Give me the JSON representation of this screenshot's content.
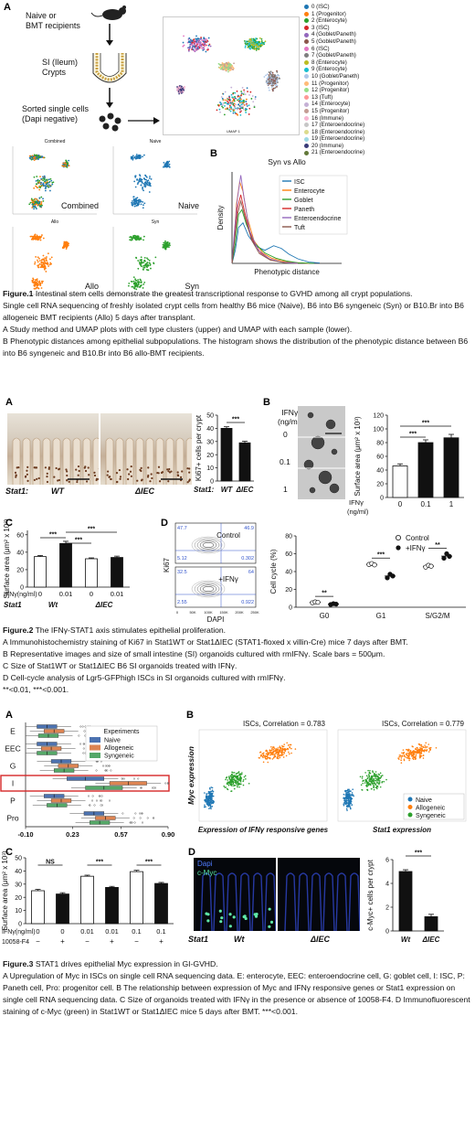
{
  "fig1": {
    "panel_a": "A",
    "panel_b": "B",
    "flow": {
      "step1": "Naive or",
      "step1b": "BMT recipients",
      "step2": "SI (Ileum)",
      "step2b": "Crypts",
      "step3": "Sorted single cells",
      "step3b": "(Dapi negative)"
    },
    "cluster_legend": [
      {
        "label": "0 (ISC)",
        "color": "#1f77b4"
      },
      {
        "label": "1 (Progenitor)",
        "color": "#ff7f0e"
      },
      {
        "label": "2 (Enterocyte)",
        "color": "#2ca02c"
      },
      {
        "label": "3 (ISC)",
        "color": "#d62728"
      },
      {
        "label": "4 (Goblet/Paneth)",
        "color": "#9467bd"
      },
      {
        "label": "5 (Goblet/Paneth)",
        "color": "#8c564b"
      },
      {
        "label": "6 (ISC)",
        "color": "#e377c2"
      },
      {
        "label": "7 (Goblet/Paneth)",
        "color": "#7f7f7f"
      },
      {
        "label": "8 (Enterocyte)",
        "color": "#bcbd22"
      },
      {
        "label": "9 (Enterocyte)",
        "color": "#17becf"
      },
      {
        "label": "10 (Goblet/Paneth)",
        "color": "#aec7e8"
      },
      {
        "label": "11 (Progenitor)",
        "color": "#ffbb78"
      },
      {
        "label": "12 (Progenitor)",
        "color": "#98df8a"
      },
      {
        "label": "13 (Tuft)",
        "color": "#ff9896"
      },
      {
        "label": "14 (Enterocyte)",
        "color": "#c5b0d5"
      },
      {
        "label": "15 (Progenitor)",
        "color": "#c49c94"
      },
      {
        "label": "16 (Immune)",
        "color": "#f7b6d2"
      },
      {
        "label": "17 (Enteroendocrine)",
        "color": "#c7c7c7"
      },
      {
        "label": "18 (Enteroendocrine)",
        "color": "#dbdb8d"
      },
      {
        "label": "19 (Enteroendocrine)",
        "color": "#9edae5"
      },
      {
        "label": "20 (Immune)",
        "color": "#393b79"
      },
      {
        "label": "21 (Enteroendocrine)",
        "color": "#637939"
      }
    ],
    "umap_titles": [
      "Combined",
      "Naive",
      "Allo",
      "Syn"
    ],
    "umap_labels": [
      "Combined",
      "Naive",
      "Allo",
      "Syn"
    ],
    "umap_axis_x": "UMAP 1",
    "umap_axis_y": "UMAP 2",
    "caption_title": "Figure.1",
    "caption_title_text": " Intestinal stem cells demonstrate the greatest transcriptional response to GVHD among all crypt populations.",
    "caption_lines": [
      "Single cell RNA sequencing of freshly isolated crypt cells from healthy B6 mice (Naive), B6 into B6 syngeneic (Syn) or B10.Br into B6 allogeneic BMT recipients (Allo) 5 days after transplant.",
      "A Study method and UMAP plots with cell type clusters (upper) and UMAP with each sample (lower).",
      "B Phenotypic distances among epithelial subpopulations. The histogram shows the distribution of the phenotypic distance between B6 into B6 syngeneic and B10.Br into B6 allo-BMT recipients."
    ]
  },
  "fig2": {
    "panel_a": "A",
    "panel_b": "B",
    "panel_c": "C",
    "panel_d": "D",
    "a_stat1": "Stat1:",
    "a_wt": "WT",
    "a_diec": "ΔIEC",
    "a_chart_stat1": "Stat1:",
    "b_ifn_label": "IFNγ",
    "b_ifn_unit": "(ng/ml)",
    "b_doses": [
      "0",
      "0.1",
      "1"
    ],
    "b_ylabel": "Surface area (μm² x 10³)",
    "b_xlabel1": "IFNγ",
    "b_xlabel2": "(ng/ml)",
    "c_ylabel": "Surface area (μm² x 10³)",
    "c_row1_label": "IFNγ(ng/ml)",
    "c_row2_label": "Stat1",
    "c_wt": "Wt",
    "c_diec": "ΔIEC",
    "d_control": "Control",
    "d_ifn": "+IFNγ",
    "d_ylabel": "Ki67",
    "d_xlabel": "DAPI",
    "d_gates_control": [
      "47.7",
      "46.9",
      "5.12",
      "0.302"
    ],
    "d_gates_ifn": [
      "32.5",
      "64",
      "2.55",
      "0.922"
    ],
    "d_xticks": [
      "0",
      "50K",
      "100K",
      "150K",
      "200K",
      "250K"
    ],
    "d_cc_ylabel": "Cell cycle (%)",
    "d_legend_control": "Control",
    "d_legend_ifn": "+IFNγ",
    "sig": [
      "***",
      "***",
      "***",
      "***",
      "***",
      "***",
      "**",
      "***",
      "**"
    ],
    "caption_title": "Figure.2",
    "caption_title_text": " The IFNγ-STAT1 axis stimulates epithelial proliferation.",
    "caption_lines": [
      "A Immunohistochemistry staining of Ki67 in Stat1WT or Stat1ΔIEC (STAT1-floxed x villin-Cre) mice 7 days after BMT.",
      "B Representative images and size of small intestine (SI) organoids cultured with rmIFNγ. Scale bars = 500μm.",
      "C Size of Stat1WT or Stat1ΔIEC B6 SI organoids treated with IFNγ.",
      "D Cell-cycle analysis of Lgr5-GFPhigh ISCs in SI organoids cultured with rmIFNγ.",
      "**<0.01, ***<0.001."
    ]
  },
  "fig3": {
    "panel_a": "A",
    "panel_b": "B",
    "panel_c": "C",
    "panel_d": "D",
    "a_legend_title": "Experiments",
    "a_groups": [
      "E",
      "EEC",
      "G",
      "I",
      "P",
      "Pro"
    ],
    "b_corr1": "ISCs, Correlation = 0.783",
    "b_corr2": "ISCs, Correlation = 0.779",
    "b_ylabel": "Myc expression",
    "b_xlabel1": "Expression of IFNγ responsive genes",
    "b_xlabel2": "Stat1 expression",
    "c_ylabel": "Surface area (μm² x 10³)",
    "c_row1_label": "IFNγ(ng/ml)",
    "c_row2_label": "10058-F4",
    "c_row1": [
      "0",
      "0",
      "0.01",
      "0.01",
      "0.1",
      "0.1"
    ],
    "c_row2": [
      "−",
      "+",
      "−",
      "+",
      "−",
      "+"
    ],
    "c_sig": [
      "NS",
      "***",
      "***"
    ],
    "d_dapi": "Dapi",
    "d_cmyc": "c-Myc",
    "d_stat1": "Stat1",
    "d_wt": "Wt",
    "d_diec": "ΔIEC",
    "d_ylabel": "c-Myc+ cells per crypt",
    "d_sig": "***",
    "caption_title": "Figure.3",
    "caption_title_text": " STAT1 drives epithelial Myc expression in GI-GVHD.",
    "caption_lines": [
      "A Upregulation of Myc in ISCs on single cell RNA sequencing data. E: enterocyte, EEC: enteroendocrine cell, G: goblet cell, I: ISC, P: Paneth cell, Pro: progenitor cell. B The relationship between expression of Myc and IFNγ responsive genes or Stat1 expression on single cell RNA sequencing data. C Size of organoids treated with IFNγ in the presence or absence of 10058-F4. D Immunofluorescent staining of c-Myc (green) in Stat1WT or Stat1ΔIEC mice 5 days after BMT. ***<0.001."
    ]
  },
  "chart_data": [
    {
      "id": "fig1b",
      "type": "line",
      "title": "Syn vs Allo",
      "xlabel": "Phenotypic distance",
      "ylabel": "Density",
      "series": [
        {
          "name": "ISC",
          "color": "#1f77b4",
          "x": [
            0.0,
            0.03,
            0.06,
            0.1,
            0.15,
            0.22,
            0.3,
            0.38,
            0.45,
            0.52,
            0.6,
            0.7,
            0.8
          ],
          "y": [
            0,
            2.0,
            5.5,
            6.2,
            4.2,
            2.6,
            2.0,
            2.7,
            2.3,
            1.4,
            0.7,
            0.2,
            0.05
          ]
        },
        {
          "name": "Enterocyte",
          "color": "#ff7f0e",
          "x": [
            0.0,
            0.02,
            0.04,
            0.07,
            0.1,
            0.14,
            0.2,
            0.28,
            0.36,
            0.45,
            0.55,
            0.7
          ],
          "y": [
            0,
            4.0,
            9.0,
            12.5,
            11.0,
            7.0,
            3.5,
            1.6,
            0.8,
            0.4,
            0.15,
            0.02
          ]
        },
        {
          "name": "Goblet",
          "color": "#2ca02c",
          "x": [
            0.0,
            0.03,
            0.06,
            0.09,
            0.13,
            0.2,
            0.3,
            0.4,
            0.5,
            0.6,
            0.75
          ],
          "y": [
            0,
            3.0,
            7.5,
            8.2,
            6.0,
            3.2,
            1.6,
            0.8,
            0.35,
            0.1,
            0.02
          ]
        },
        {
          "name": "Paneth",
          "color": "#d62728",
          "x": [
            0.0,
            0.02,
            0.05,
            0.08,
            0.12,
            0.18,
            0.26,
            0.35,
            0.45,
            0.6
          ],
          "y": [
            0,
            3.5,
            8.5,
            10.5,
            7.5,
            3.8,
            1.6,
            0.6,
            0.2,
            0.02
          ]
        },
        {
          "name": "Enteroendocrine",
          "color": "#9467bd",
          "x": [
            0.0,
            0.02,
            0.05,
            0.08,
            0.11,
            0.16,
            0.24,
            0.34,
            0.45,
            0.6
          ],
          "y": [
            0,
            4.5,
            10.0,
            13.5,
            10.0,
            5.0,
            2.0,
            0.7,
            0.2,
            0.02
          ]
        },
        {
          "name": "Tuft",
          "color": "#8c564b",
          "x": [
            0.0,
            0.02,
            0.05,
            0.08,
            0.12,
            0.18,
            0.25,
            0.35,
            0.5
          ],
          "y": [
            0,
            3.0,
            7.5,
            9.5,
            7.0,
            3.5,
            1.5,
            0.5,
            0.05
          ]
        }
      ],
      "xlim": [
        0,
        1.0
      ],
      "ylim": [
        0,
        14
      ],
      "legend": "top-right",
      "grid": false
    },
    {
      "id": "fig2a",
      "type": "bar",
      "ylabel": "Ki67+ cells per crypt",
      "categories": [
        "WT",
        "ΔIEC"
      ],
      "values": [
        40,
        29
      ],
      "errors": [
        1.2,
        1.2
      ],
      "colors": [
        "#111111",
        "#111111"
      ],
      "yticks": [
        0,
        10,
        20,
        30,
        40,
        50
      ],
      "ylim": [
        0,
        50
      ],
      "significance": "***"
    },
    {
      "id": "fig2b",
      "type": "bar",
      "ylabel": "Surface area (μm² x 10³)",
      "categories": [
        "0",
        "0.1",
        "1"
      ],
      "values": [
        46,
        80,
        87
      ],
      "errors": [
        3,
        4,
        5
      ],
      "colors": [
        "#ffffff",
        "#111111",
        "#111111"
      ],
      "yticks": [
        0,
        20,
        40,
        60,
        80,
        100,
        120
      ],
      "ylim": [
        0,
        120
      ],
      "significance": [
        "***",
        "***"
      ]
    },
    {
      "id": "fig2c",
      "type": "bar",
      "ylabel": "Surface area (μm² x 10³)",
      "categories": [
        "0",
        "0.01",
        "0",
        "0.01"
      ],
      "groups": [
        "Wt",
        "Wt",
        "ΔIEC",
        "ΔIEC"
      ],
      "values": [
        35,
        50,
        32.5,
        34
      ],
      "errors": [
        1.2,
        2.5,
        1.0,
        1.5
      ],
      "colors": [
        "#ffffff",
        "#111111",
        "#ffffff",
        "#111111"
      ],
      "yticks": [
        0,
        20,
        40,
        60
      ],
      "ylim": [
        0,
        65
      ],
      "significance": [
        "***",
        "***",
        "***"
      ]
    },
    {
      "id": "fig2d",
      "type": "scatter",
      "ylabel": "Cell cycle (%)",
      "categories": [
        "G0",
        "G1",
        "S/G2/M"
      ],
      "series": [
        {
          "name": "Control",
          "values": [
            [
              5,
              6,
              5.5
            ],
            [
              48,
              49,
              47.5
            ],
            [
              45,
              47,
              46
            ]
          ]
        },
        {
          "name": "+IFNγ",
          "values": [
            [
              3,
              4,
              3.5
            ],
            [
              33,
              37,
              35
            ],
            [
              55,
              60,
              57
            ]
          ]
        }
      ],
      "yticks": [
        0,
        20,
        40,
        60,
        80
      ],
      "ylim": [
        0,
        80
      ],
      "significance": [
        "**",
        "***",
        "**"
      ]
    },
    {
      "id": "fig3a",
      "type": "box",
      "categories": [
        "E",
        "EEC",
        "G",
        "I",
        "P",
        "Pro"
      ],
      "series": [
        {
          "name": "Naive",
          "color": "#4c72b0",
          "median": [
            0.05,
            0.05,
            0.15,
            0.32,
            0.1,
            0.38
          ]
        },
        {
          "name": "Allogeneic",
          "color": "#dd8452",
          "median": [
            0.1,
            0.08,
            0.2,
            0.62,
            0.15,
            0.46
          ]
        },
        {
          "name": "Syngeneic",
          "color": "#55a868",
          "median": [
            0.06,
            0.05,
            0.17,
            0.45,
            0.12,
            0.42
          ]
        }
      ],
      "xticks": [
        "-0.10",
        "0.23",
        "0.57",
        "0.90"
      ],
      "xlim": [
        -0.1,
        0.9
      ],
      "highlight": "I"
    },
    {
      "id": "fig3b",
      "type": "scatter",
      "series": [
        {
          "name": "Naive",
          "color": "#1f77b4"
        },
        {
          "name": "Allogeneic",
          "color": "#ff7f0e"
        },
        {
          "name": "Syngeneic",
          "color": "#2ca02c"
        }
      ]
    },
    {
      "id": "fig3c",
      "type": "bar",
      "ylabel": "Surface area (μm² x 10³)",
      "categories": [
        "0/−",
        "0/+",
        "0.01/−",
        "0.01/+",
        "0.1/−",
        "0.1/+"
      ],
      "values": [
        25,
        22.5,
        36,
        27.5,
        39.5,
        30.5
      ],
      "errors": [
        1,
        1,
        0.8,
        0.8,
        1,
        0.8
      ],
      "colors": [
        "#ffffff",
        "#111111",
        "#ffffff",
        "#111111",
        "#ffffff",
        "#111111"
      ],
      "yticks": [
        0,
        10,
        20,
        30,
        40,
        50
      ],
      "ylim": [
        0,
        50
      ],
      "significance": [
        "NS",
        "***",
        "***"
      ]
    },
    {
      "id": "fig3d",
      "type": "bar",
      "ylabel": "c-Myc+ cells per crypt",
      "categories": [
        "Wt",
        "ΔIEC"
      ],
      "values": [
        5,
        1.2
      ],
      "errors": [
        0.15,
        0.2
      ],
      "colors": [
        "#111111",
        "#111111"
      ],
      "yticks": [
        0,
        2,
        4,
        6
      ],
      "ylim": [
        0,
        6
      ],
      "significance": "***"
    }
  ]
}
